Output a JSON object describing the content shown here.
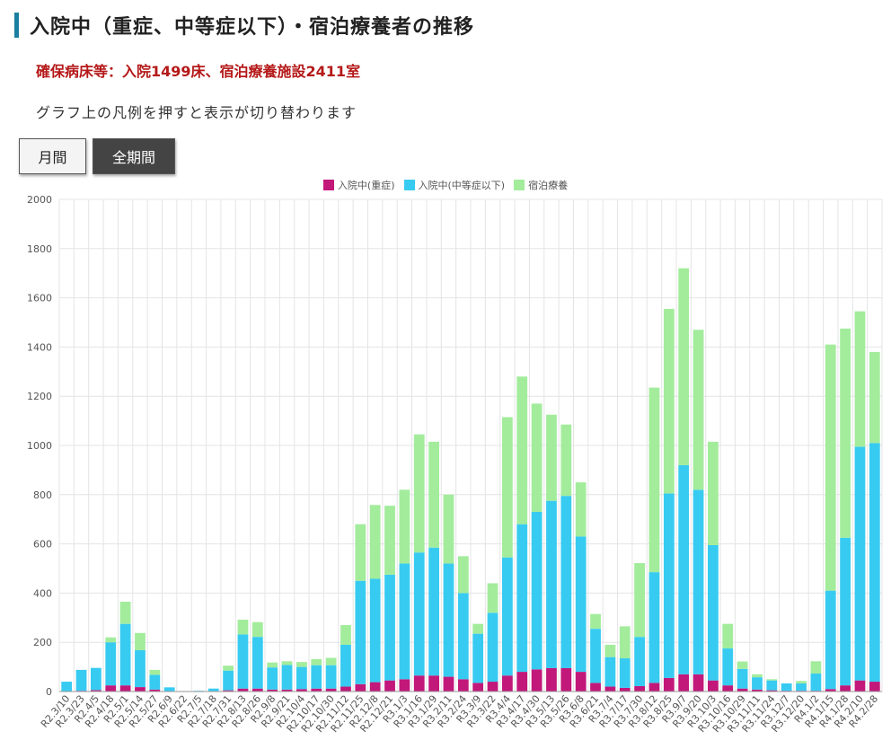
{
  "header": {
    "title": "入院中（重症、中等症以下）・宿泊療養者の推移",
    "beds": "確保病床等：入院1499床、宿泊療養施設2411室",
    "note": "グラフ上の凡例を押すと表示が切り替わります"
  },
  "buttons": {
    "monthly": "月間",
    "all_period": "全期間"
  },
  "colors": {
    "severe": "#c2187a",
    "moderate": "#38cbf1",
    "lodging": "#a3ec9c",
    "title_bar": "#1a7fa0",
    "beds_text": "#b51919"
  },
  "chart_data": {
    "type": "bar",
    "stacked": true,
    "ylim": [
      0,
      2000
    ],
    "yticks": [
      "0",
      "200",
      "400",
      "600",
      "800",
      "1000",
      "1200",
      "1400",
      "1600",
      "1800",
      "2000"
    ],
    "grid": true,
    "legend_position": "top-center",
    "categories": [
      "R2.3/10",
      "R2.3/23",
      "R2.4/5",
      "R2.4/18",
      "R2.5/1",
      "R2.5/14",
      "R2.5/27",
      "R2.6/9",
      "R2.6/22",
      "R2.7/5",
      "R2.7/18",
      "R2.7/31",
      "R2.8/13",
      "R2.8/26",
      "R2.9/8",
      "R2.9/21",
      "R2.10/4",
      "R2.10/17",
      "R2.10/30",
      "R2.11/12",
      "R2.11/25",
      "R2.12/8",
      "R2.12/21",
      "R3.1/3",
      "R3.1/16",
      "R3.1/29",
      "R3.2/11",
      "R3.2/24",
      "R3.3/9",
      "R3.3/22",
      "R3.4/4",
      "R3.4/17",
      "R3.4/30",
      "R3.5/13",
      "R3.5/26",
      "R3.6/8",
      "R3.6/21",
      "R3.7/4",
      "R3.7/17",
      "R3.7/30",
      "R3.8/12",
      "R3.8/25",
      "R3.9/7",
      "R3.9/20",
      "R3.10/3",
      "R3.10/16",
      "R3.10/29",
      "R3.11/11",
      "R3.11/24",
      "R3.12/7",
      "R3.12/20",
      "R4.1/2",
      "R4.1/15",
      "R4.1/28",
      "R4.2/10",
      "R4.2/28"
    ],
    "series": [
      {
        "name": "入院中(重症)",
        "values": [
          0,
          3,
          6,
          25,
          25,
          18,
          8,
          2,
          0,
          0,
          2,
          5,
          12,
          12,
          8,
          8,
          10,
          12,
          12,
          20,
          30,
          38,
          45,
          50,
          65,
          65,
          60,
          50,
          35,
          40,
          65,
          80,
          90,
          95,
          95,
          80,
          35,
          20,
          15,
          22,
          35,
          55,
          70,
          70,
          45,
          25,
          12,
          8,
          5,
          3,
          3,
          3,
          10,
          25,
          45,
          40
        ]
      },
      {
        "name": "入院中(中等症以下)",
        "values": [
          40,
          85,
          90,
          175,
          250,
          150,
          60,
          15,
          2,
          3,
          10,
          80,
          220,
          210,
          90,
          100,
          90,
          95,
          95,
          170,
          420,
          420,
          430,
          470,
          500,
          520,
          460,
          350,
          200,
          280,
          480,
          600,
          640,
          680,
          700,
          550,
          220,
          120,
          120,
          200,
          450,
          750,
          850,
          750,
          550,
          150,
          80,
          50,
          40,
          30,
          30,
          70,
          400,
          600,
          950,
          970
        ]
      },
      {
        "name": "宿泊療養",
        "values": [
          0,
          0,
          0,
          20,
          90,
          70,
          20,
          0,
          0,
          0,
          0,
          20,
          60,
          60,
          20,
          15,
          20,
          25,
          30,
          80,
          230,
          300,
          280,
          300,
          480,
          430,
          280,
          150,
          40,
          120,
          570,
          600,
          440,
          350,
          290,
          220,
          60,
          50,
          130,
          300,
          750,
          750,
          800,
          650,
          420,
          100,
          30,
          12,
          5,
          0,
          10,
          50,
          1000,
          850,
          550,
          370
        ]
      }
    ]
  }
}
